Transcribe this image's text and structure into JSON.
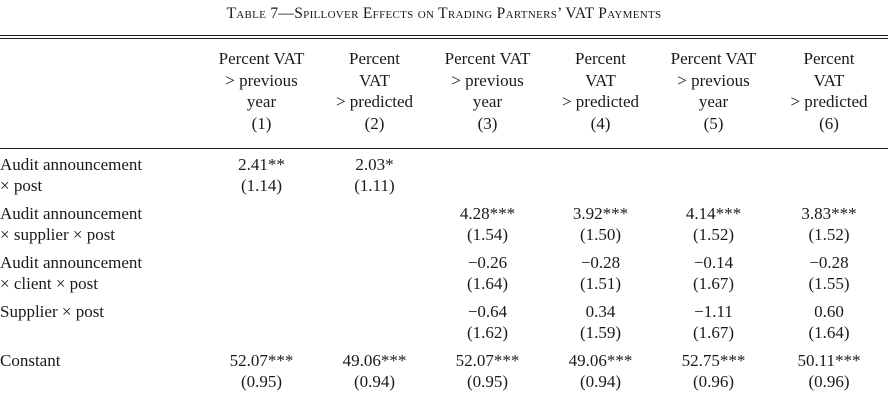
{
  "caption": "Table 7—Spillover Effects on Trading Partners’ VAT Payments",
  "columns": [
    {
      "lines": [
        "Percent VAT",
        "> previous",
        "year",
        "(1)"
      ]
    },
    {
      "lines": [
        "Percent",
        "VAT",
        "> predicted",
        "(2)"
      ]
    },
    {
      "lines": [
        "Percent VAT",
        "> previous",
        "year",
        "(3)"
      ]
    },
    {
      "lines": [
        "Percent",
        "VAT",
        "> predicted",
        "(4)"
      ]
    },
    {
      "lines": [
        "Percent VAT",
        "> previous",
        "year",
        "(5)"
      ]
    },
    {
      "lines": [
        "Percent",
        "VAT",
        "> predicted",
        "(6)"
      ]
    }
  ],
  "rows": [
    {
      "label_line1": "Audit announcement",
      "label_line2": "× post",
      "estimates": [
        "2.41**",
        "2.03*",
        "",
        "",
        "",
        ""
      ],
      "std_errors": [
        "(1.14)",
        "(1.11)",
        "",
        "",
        "",
        ""
      ]
    },
    {
      "label_line1": "Audit announcement",
      "label_line2": "× supplier × post",
      "estimates": [
        "",
        "",
        "4.28***",
        "3.92***",
        "4.14***",
        "3.83***"
      ],
      "std_errors": [
        "",
        "",
        "(1.54)",
        "(1.50)",
        "(1.52)",
        "(1.52)"
      ]
    },
    {
      "label_line1": "Audit announcement",
      "label_line2": "× client × post",
      "estimates": [
        "",
        "",
        "−0.26",
        "−0.28",
        "−0.14",
        "−0.28"
      ],
      "std_errors": [
        "",
        "",
        "(1.64)",
        "(1.51)",
        "(1.67)",
        "(1.55)"
      ]
    },
    {
      "label_line1": "Supplier × post",
      "label_line2": "",
      "estimates": [
        "",
        "",
        "−0.64",
        "0.34",
        "−1.11",
        "0.60"
      ],
      "std_errors": [
        "",
        "",
        "(1.62)",
        "(1.59)",
        "(1.67)",
        "(1.64)"
      ]
    },
    {
      "label_line1": "Constant",
      "label_line2": "",
      "estimates": [
        "52.07***",
        "49.06***",
        "52.07***",
        "49.06***",
        "52.75***",
        "50.11***"
      ],
      "std_errors": [
        "(0.95)",
        "(0.94)",
        "(0.95)",
        "(0.94)",
        "(0.96)",
        "(0.96)"
      ]
    }
  ]
}
